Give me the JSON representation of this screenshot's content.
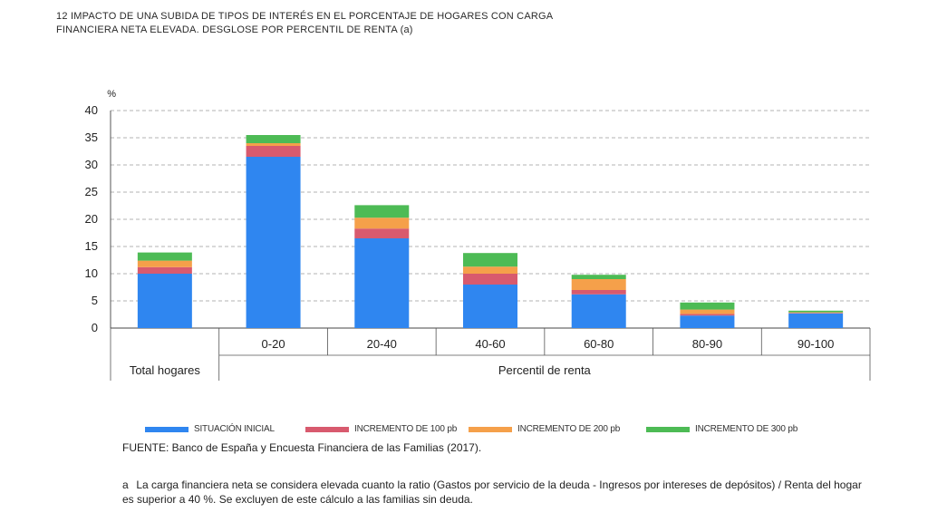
{
  "title": {
    "number": "12",
    "text": "IMPACTO DE UNA SUBIDA DE TIPOS DE INTERÉS EN EL PORCENTAJE DE HOGARES CON CARGA FINANCIERA NETA ELEVADA. DESGLOSE POR PERCENTIL DE RENTA (a)"
  },
  "chart_data": {
    "type": "bar",
    "stacked": true,
    "ylabel": "%",
    "ylim": [
      0,
      40
    ],
    "yticks": [
      "0",
      "5",
      "10",
      "15",
      "20",
      "25",
      "30",
      "35",
      "40"
    ],
    "grid": "dashed-horizontal",
    "categories": [
      "Total hogares",
      "0-20",
      "20-40",
      "40-60",
      "60-80",
      "80-90",
      "90-100"
    ],
    "group_labels": {
      "total": "Total hogares",
      "percentiles": "Percentil de renta"
    },
    "series": [
      {
        "name": "SITUACIÓN INICIAL",
        "color": "#2f86f0",
        "values": [
          10,
          31.5,
          16.5,
          8,
          6.2,
          2.3,
          2.7
        ]
      },
      {
        "name": "INCREMENTO DE 100 pb",
        "color": "#d85a6e",
        "values": [
          1.2,
          2.0,
          1.8,
          2.0,
          0.8,
          0.3,
          0.1
        ]
      },
      {
        "name": "INCREMENTO DE 200 pb",
        "color": "#f5a04a",
        "values": [
          1.2,
          0.5,
          2.0,
          1.3,
          2.0,
          0.8,
          0.1
        ]
      },
      {
        "name": "INCREMENTO DE 300 pb",
        "color": "#4dbb55",
        "values": [
          1.5,
          1.5,
          2.3,
          2.5,
          0.8,
          1.3,
          0.3
        ]
      }
    ]
  },
  "legend": {
    "items": [
      {
        "label": "SITUACIÓN INICIAL",
        "color": "#2f86f0"
      },
      {
        "label": "INCREMENTO DE 100 pb",
        "color": "#d85a6e"
      },
      {
        "label": "INCREMENTO DE 200 pb",
        "color": "#f5a04a"
      },
      {
        "label": "INCREMENTO DE 300 pb",
        "color": "#4dbb55"
      }
    ]
  },
  "source": "FUENTE: Banco de España y Encuesta Financiera de las Familias (2017).",
  "note": {
    "label": "a",
    "text": "La carga financiera neta se considera elevada cuanto la ratio (Gastos por servicio de la deuda -  Ingresos por intereses de depósitos) / Renta  del hogar es superior a 40 %. Se excluyen de este cálculo a las familias sin deuda."
  }
}
